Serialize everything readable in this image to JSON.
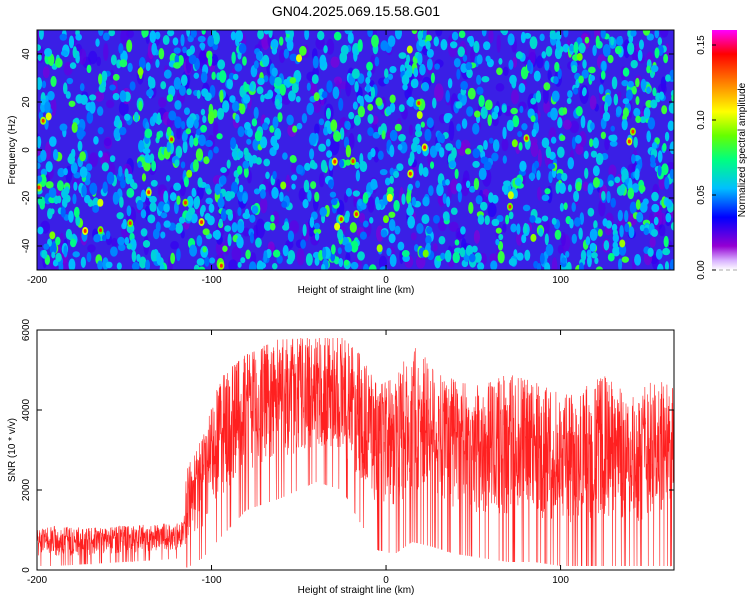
{
  "chart_data": [
    {
      "type": "heatmap",
      "title": "GN04.2025.069.15.58.G01",
      "xlabel": "Height of straight line (km)",
      "ylabel": "Frequency (Hz)",
      "xlim": [
        -200,
        165
      ],
      "ylim": [
        -50,
        50
      ],
      "xticks": [
        "-200",
        "-100",
        "0",
        "100"
      ],
      "yticks": [
        "-40",
        "-20",
        "0",
        "20",
        "40"
      ],
      "colorbar": {
        "label": "Normalized spectral amplitude",
        "range": [
          0,
          0.16
        ],
        "ticks": [
          "0.00",
          "0.05",
          "0.10",
          "0.15"
        ],
        "colormap": [
          "#ffffff",
          "#9400d3",
          "#0000ff",
          "#00bfff",
          "#00ff7f",
          "#66ff00",
          "#ffff00",
          "#ff8000",
          "#ff0000",
          "#ff00ff"
        ]
      },
      "grid": false
    },
    {
      "type": "line",
      "xlabel": "Height of straight line (km)",
      "ylabel": "SNR (10 * v/v)",
      "xlim": [
        -200,
        165
      ],
      "ylim": [
        0,
        6000
      ],
      "xticks": [
        "-200",
        "-100",
        "0",
        "100"
      ],
      "yticks": [
        "0",
        "2000",
        "4000",
        "6000"
      ],
      "color": "#ff2020",
      "envelope": [
        {
          "x": -200,
          "low": 100,
          "high": 1000
        },
        {
          "x": -190,
          "low": 100,
          "high": 1100
        },
        {
          "x": -170,
          "low": 150,
          "high": 1050
        },
        {
          "x": -150,
          "low": 200,
          "high": 1100
        },
        {
          "x": -130,
          "low": 250,
          "high": 1150
        },
        {
          "x": -116,
          "low": 300,
          "high": 1200
        },
        {
          "x": -114,
          "low": 50,
          "high": 2700
        },
        {
          "x": -105,
          "low": 300,
          "high": 3300
        },
        {
          "x": -95,
          "low": 800,
          "high": 4800
        },
        {
          "x": -80,
          "low": 1500,
          "high": 5400
        },
        {
          "x": -60,
          "low": 1800,
          "high": 5800
        },
        {
          "x": -40,
          "low": 2200,
          "high": 5800
        },
        {
          "x": -25,
          "low": 2000,
          "high": 5800
        },
        {
          "x": -15,
          "low": 1200,
          "high": 5400
        },
        {
          "x": -5,
          "low": 500,
          "high": 4600
        },
        {
          "x": 5,
          "low": 400,
          "high": 4800
        },
        {
          "x": 15,
          "low": 700,
          "high": 5600
        },
        {
          "x": 25,
          "low": 600,
          "high": 5300
        },
        {
          "x": 40,
          "low": 400,
          "high": 4700
        },
        {
          "x": 55,
          "low": 300,
          "high": 4600
        },
        {
          "x": 70,
          "low": 200,
          "high": 4900
        },
        {
          "x": 85,
          "low": 200,
          "high": 4700
        },
        {
          "x": 100,
          "low": 100,
          "high": 4400
        },
        {
          "x": 115,
          "low": 100,
          "high": 4600
        },
        {
          "x": 125,
          "low": 100,
          "high": 4900
        },
        {
          "x": 140,
          "low": 100,
          "high": 4300
        },
        {
          "x": 155,
          "low": 100,
          "high": 4800
        },
        {
          "x": 165,
          "low": 100,
          "high": 4600
        }
      ]
    }
  ]
}
